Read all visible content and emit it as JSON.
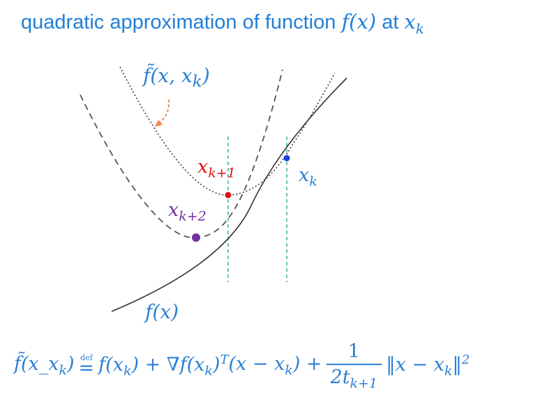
{
  "title": {
    "text": "quadratic approximation of function",
    "func": "f(x)",
    "at": "at",
    "var": "x",
    "sub": "k"
  },
  "labels": {
    "approx_func": "f̃(x, x",
    "approx_sub": "k",
    "approx_close": ")",
    "x_k1": "x",
    "x_k1_sub": "k+1",
    "x_k2": "x",
    "x_k2_sub": "k+2",
    "x_k": "x",
    "x_k_sub": "k",
    "f_x": "f(x)"
  },
  "formula": {
    "lhs": "f̃(x_x",
    "lhs_sub": "k",
    "lhs_close": ")",
    "defeq_top": "def",
    "defeq": "=",
    "t1": "f(x",
    "t1_sub": "k",
    "t1_close": ") + ∇f(x",
    "t2_sub": "k",
    "t2_close": ")",
    "t2_sup": "T",
    "t3": "(x − x",
    "t3_sub": "k",
    "t3_close": ") +",
    "frac_num": "1",
    "frac_den": "2t",
    "frac_den_sub": "k+1",
    "t4": "‖x − x",
    "t4_sub": "k",
    "t4_close": "‖",
    "t4_sup": "2"
  },
  "colors": {
    "blue": "#2a7fd4",
    "red": "#e01010",
    "purple": "#7030a0",
    "orange": "#f4874b",
    "green": "#1aa37a",
    "curve": "#333333"
  }
}
